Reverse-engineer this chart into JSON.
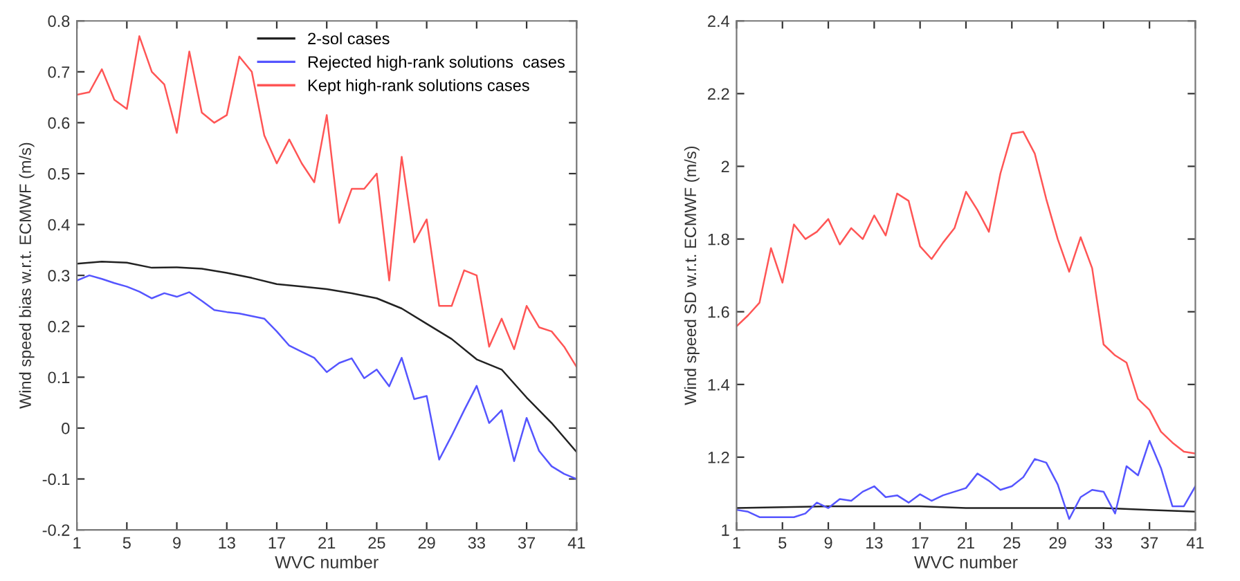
{
  "chart_data": [
    {
      "type": "line",
      "xlabel": "WVC number",
      "ylabel": "Wind speed bias w.r.t. ECMWF (m/s)",
      "xlim": [
        1,
        41
      ],
      "ylim": [
        -0.2,
        0.8
      ],
      "xticks": [
        1,
        5,
        9,
        13,
        17,
        21,
        25,
        29,
        33,
        37,
        41
      ],
      "yticks": [
        -0.2,
        -0.1,
        0,
        0.1,
        0.2,
        0.3,
        0.4,
        0.5,
        0.6,
        0.7,
        0.8
      ],
      "grid": false,
      "legend": "top right",
      "marker": "none",
      "line_style": "solid",
      "series": [
        {
          "name": "2-sol cases",
          "color": "#222222",
          "x": [
            1,
            3,
            5,
            7,
            9,
            11,
            13,
            15,
            17,
            19,
            21,
            23,
            25,
            27,
            29,
            31,
            33,
            35,
            37,
            39,
            41
          ],
          "values": [
            0.323,
            0.327,
            0.325,
            0.315,
            0.316,
            0.313,
            0.305,
            0.295,
            0.283,
            0.278,
            0.273,
            0.265,
            0.255,
            0.235,
            0.205,
            0.175,
            0.135,
            0.115,
            0.06,
            0.01,
            -0.047
          ]
        },
        {
          "name": "Rejected high-rank solutions  cases",
          "color": "#5555ff",
          "x": [
            1,
            2,
            3,
            4,
            5,
            6,
            7,
            8,
            9,
            10,
            11,
            12,
            13,
            14,
            15,
            16,
            17,
            18,
            19,
            20,
            21,
            22,
            23,
            24,
            25,
            26,
            27,
            28,
            29,
            30,
            31,
            32,
            33,
            34,
            35,
            36,
            37,
            38,
            39,
            40,
            41
          ],
          "values": [
            0.29,
            0.3,
            0.293,
            0.285,
            0.278,
            0.268,
            0.255,
            0.265,
            0.258,
            0.267,
            0.25,
            0.232,
            0.228,
            0.225,
            0.22,
            0.215,
            0.19,
            0.162,
            0.15,
            0.138,
            0.11,
            0.128,
            0.137,
            0.098,
            0.115,
            0.082,
            0.138,
            0.057,
            0.063,
            -0.062,
            -0.015,
            0.035,
            0.083,
            0.01,
            0.035,
            -0.065,
            0.02,
            -0.045,
            -0.075,
            -0.09,
            -0.1
          ]
        },
        {
          "name": "Kept high-rank solutions cases",
          "color": "#ff5555",
          "x": [
            1,
            2,
            3,
            4,
            5,
            6,
            7,
            8,
            9,
            10,
            11,
            12,
            13,
            14,
            15,
            16,
            17,
            18,
            19,
            20,
            21,
            22,
            23,
            24,
            25,
            26,
            27,
            28,
            29,
            30,
            31,
            32,
            33,
            34,
            35,
            36,
            37,
            38,
            39,
            40,
            41
          ],
          "values": [
            0.655,
            0.66,
            0.705,
            0.645,
            0.627,
            0.77,
            0.7,
            0.675,
            0.58,
            0.74,
            0.62,
            0.6,
            0.615,
            0.73,
            0.7,
            0.575,
            0.52,
            0.567,
            0.52,
            0.483,
            0.615,
            0.403,
            0.47,
            0.47,
            0.5,
            0.29,
            0.533,
            0.365,
            0.41,
            0.24,
            0.24,
            0.31,
            0.3,
            0.16,
            0.215,
            0.155,
            0.24,
            0.198,
            0.19,
            0.16,
            0.12
          ]
        }
      ]
    },
    {
      "type": "line",
      "xlabel": "WVC number",
      "ylabel": "Wind speed SD w.r.t. ECMWF (m/s)",
      "xlim": [
        1,
        41
      ],
      "ylim": [
        1,
        2.4
      ],
      "xticks": [
        1,
        5,
        9,
        13,
        17,
        21,
        25,
        29,
        33,
        37,
        41
      ],
      "yticks": [
        1,
        1.2,
        1.4,
        1.6,
        1.8,
        2,
        2.2,
        2.4
      ],
      "grid": false,
      "legend": false,
      "marker": "none",
      "line_style": "solid",
      "series": [
        {
          "color": "#222222",
          "x": [
            1,
            9,
            17,
            21,
            29,
            33,
            37,
            41
          ],
          "values": [
            1.06,
            1.065,
            1.065,
            1.06,
            1.06,
            1.06,
            1.055,
            1.05
          ]
        },
        {
          "color": "#5555ff",
          "x": [
            1,
            2,
            3,
            4,
            5,
            6,
            7,
            8,
            9,
            10,
            11,
            12,
            13,
            14,
            15,
            16,
            17,
            18,
            19,
            20,
            21,
            22,
            23,
            24,
            25,
            26,
            27,
            28,
            29,
            30,
            31,
            32,
            33,
            34,
            35,
            36,
            37,
            38,
            39,
            40,
            41
          ],
          "values": [
            1.055,
            1.05,
            1.035,
            1.035,
            1.035,
            1.035,
            1.045,
            1.075,
            1.06,
            1.085,
            1.08,
            1.105,
            1.12,
            1.09,
            1.095,
            1.075,
            1.098,
            1.08,
            1.095,
            1.105,
            1.115,
            1.155,
            1.135,
            1.11,
            1.12,
            1.145,
            1.195,
            1.185,
            1.125,
            1.03,
            1.09,
            1.11,
            1.105,
            1.045,
            1.175,
            1.15,
            1.245,
            1.17,
            1.065,
            1.065,
            1.12
          ]
        },
        {
          "color": "#ff5555",
          "x": [
            1,
            2,
            3,
            4,
            5,
            6,
            7,
            8,
            9,
            10,
            11,
            12,
            13,
            14,
            15,
            16,
            17,
            18,
            19,
            20,
            21,
            22,
            23,
            24,
            25,
            26,
            27,
            28,
            29,
            30,
            31,
            32,
            33,
            34,
            35,
            36,
            37,
            38,
            39,
            40,
            41
          ],
          "values": [
            1.56,
            1.59,
            1.625,
            1.775,
            1.68,
            1.84,
            1.8,
            1.82,
            1.855,
            1.785,
            1.83,
            1.8,
            1.865,
            1.81,
            1.925,
            1.905,
            1.78,
            1.745,
            1.79,
            1.83,
            1.93,
            1.88,
            1.82,
            1.98,
            2.09,
            2.095,
            2.035,
            1.91,
            1.8,
            1.71,
            1.805,
            1.72,
            1.51,
            1.48,
            1.46,
            1.36,
            1.33,
            1.27,
            1.24,
            1.215,
            1.21
          ]
        }
      ]
    }
  ]
}
